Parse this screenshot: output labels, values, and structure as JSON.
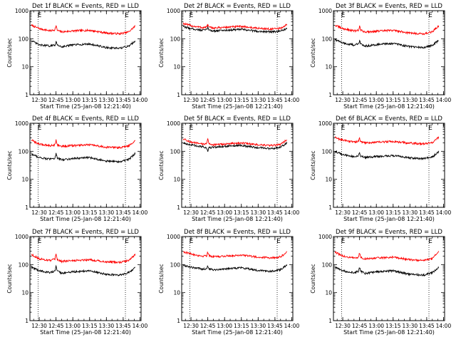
{
  "chart_data": [
    {
      "type": "line",
      "title": "Det 1f BLACK = Events, RED = LLD",
      "xlabel": "Start Time (25-Jan-08 12:21:40)",
      "ylabel": "Counts/sec",
      "y_scale": "log",
      "ylim": [
        1,
        1000
      ],
      "x_ticks": [
        "12:30",
        "12:45",
        "13:00",
        "13:15",
        "13:30",
        "13:45",
        "14:00"
      ],
      "y_ticks": [
        "1",
        "10",
        "100",
        "1000"
      ],
      "markers": [
        "E",
        "E"
      ],
      "series": [
        {
          "name": "Events",
          "color": "#000000",
          "x": [
            "12:23",
            "12:30",
            "12:40",
            "12:44",
            "12:45",
            "12:46",
            "12:50",
            "13:00",
            "13:15",
            "13:30",
            "13:42",
            "13:50",
            "13:56"
          ],
          "y": [
            85,
            60,
            55,
            60,
            80,
            60,
            52,
            60,
            65,
            48,
            45,
            55,
            85
          ]
        },
        {
          "name": "LLD",
          "color": "#ff0000",
          "x": [
            "12:23",
            "12:30",
            "12:40",
            "12:44",
            "12:45",
            "12:46",
            "12:50",
            "13:00",
            "13:15",
            "13:30",
            "13:42",
            "13:50",
            "13:56"
          ],
          "y": [
            300,
            230,
            190,
            210,
            300,
            200,
            175,
            190,
            200,
            160,
            150,
            175,
            290
          ]
        }
      ]
    },
    {
      "type": "line",
      "title": "Det 2f BLACK = Events, RED = LLD",
      "xlabel": "Start Time (25-Jan-08 12:21:40)",
      "ylabel": "Counts/sec",
      "y_scale": "log",
      "ylim": [
        1,
        1000
      ],
      "x_ticks": [
        "12:30",
        "12:45",
        "13:00",
        "13:15",
        "13:30",
        "13:45",
        "14:00"
      ],
      "y_ticks": [
        "1",
        "10",
        "100",
        "1000"
      ],
      "markers": [
        "E",
        "E"
      ],
      "series": [
        {
          "name": "Events",
          "color": "#000000",
          "x": [
            "12:23",
            "12:30",
            "12:40",
            "12:44",
            "12:45",
            "12:46",
            "12:50",
            "13:00",
            "13:15",
            "13:30",
            "13:42",
            "13:50",
            "13:56"
          ],
          "y": [
            270,
            230,
            200,
            210,
            260,
            205,
            190,
            200,
            215,
            185,
            175,
            185,
            230
          ]
        },
        {
          "name": "LLD",
          "color": "#ff0000",
          "x": [
            "12:23",
            "12:30",
            "12:40",
            "12:44",
            "12:45",
            "12:46",
            "12:50",
            "13:00",
            "13:15",
            "13:30",
            "13:42",
            "13:50",
            "13:56"
          ],
          "y": [
            350,
            290,
            250,
            260,
            330,
            255,
            240,
            255,
            275,
            235,
            220,
            235,
            320
          ]
        }
      ]
    },
    {
      "type": "line",
      "title": "Det 3f BLACK = Events, RED = LLD",
      "xlabel": "Start Time (25-Jan-08 12:21:40)",
      "ylabel": "Counts/sec",
      "y_scale": "log",
      "ylim": [
        1,
        1000
      ],
      "x_ticks": [
        "12:30",
        "12:45",
        "13:00",
        "13:15",
        "13:30",
        "13:45",
        "14:00"
      ],
      "y_ticks": [
        "1",
        "10",
        "100",
        "1000"
      ],
      "markers": [
        "E",
        "E"
      ],
      "series": [
        {
          "name": "Events",
          "color": "#000000",
          "x": [
            "12:23",
            "12:30",
            "12:40",
            "12:44",
            "12:45",
            "12:46",
            "12:50",
            "13:00",
            "13:15",
            "13:30",
            "13:42",
            "13:50",
            "13:56"
          ],
          "y": [
            95,
            70,
            60,
            65,
            85,
            65,
            55,
            62,
            68,
            52,
            48,
            58,
            90
          ]
        },
        {
          "name": "LLD",
          "color": "#ff0000",
          "x": [
            "12:23",
            "12:30",
            "12:40",
            "12:44",
            "12:45",
            "12:46",
            "12:50",
            "13:00",
            "13:15",
            "13:30",
            "13:42",
            "13:50",
            "13:56"
          ],
          "y": [
            300,
            230,
            190,
            200,
            290,
            200,
            175,
            185,
            200,
            160,
            150,
            175,
            300
          ]
        }
      ]
    },
    {
      "type": "line",
      "title": "Det 4f BLACK = Events, RED = LLD",
      "xlabel": "Start Time (25-Jan-08 12:21:40)",
      "ylabel": "Counts/sec",
      "y_scale": "log",
      "ylim": [
        1,
        1000
      ],
      "x_ticks": [
        "12:30",
        "12:45",
        "13:00",
        "13:15",
        "13:30",
        "13:45",
        "14:00"
      ],
      "y_ticks": [
        "1",
        "10",
        "100",
        "1000"
      ],
      "markers": [
        "E",
        "E"
      ],
      "series": [
        {
          "name": "Events",
          "color": "#000000",
          "x": [
            "12:23",
            "12:30",
            "12:40",
            "12:44",
            "12:45",
            "12:46",
            "12:50",
            "13:00",
            "13:15",
            "13:30",
            "13:42",
            "13:50",
            "13:56"
          ],
          "y": [
            80,
            60,
            52,
            58,
            85,
            58,
            50,
            55,
            60,
            45,
            42,
            52,
            85
          ]
        },
        {
          "name": "LLD",
          "color": "#ff0000",
          "x": [
            "12:23",
            "12:30",
            "12:40",
            "12:44",
            "12:45",
            "12:46",
            "12:50",
            "13:00",
            "13:15",
            "13:30",
            "13:42",
            "13:50",
            "13:56"
          ],
          "y": [
            250,
            180,
            160,
            170,
            260,
            170,
            150,
            160,
            170,
            140,
            135,
            155,
            250
          ]
        }
      ]
    },
    {
      "type": "line",
      "title": "Det 5f BLACK = Events, RED = LLD",
      "xlabel": "Start Time (25-Jan-08 12:21:40)",
      "ylabel": "Counts/sec",
      "y_scale": "log",
      "ylim": [
        1,
        1000
      ],
      "x_ticks": [
        "12:30",
        "12:45",
        "13:00",
        "13:15",
        "13:30",
        "13:45",
        "14:00"
      ],
      "y_ticks": [
        "1",
        "10",
        "100",
        "1000"
      ],
      "markers": [
        "E",
        "E"
      ],
      "series": [
        {
          "name": "Events",
          "color": "#000000",
          "x": [
            "12:23",
            "12:30",
            "12:40",
            "12:44",
            "12:45",
            "12:46",
            "12:50",
            "13:00",
            "13:15",
            "13:30",
            "13:42",
            "13:50",
            "13:56"
          ],
          "y": [
            200,
            170,
            145,
            130,
            90,
            135,
            140,
            150,
            160,
            135,
            125,
            140,
            200
          ]
        },
        {
          "name": "LLD",
          "color": "#ff0000",
          "x": [
            "12:23",
            "12:30",
            "12:40",
            "12:44",
            "12:45",
            "12:46",
            "12:50",
            "13:00",
            "13:15",
            "13:30",
            "13:42",
            "13:50",
            "13:56"
          ],
          "y": [
            280,
            210,
            180,
            190,
            270,
            190,
            170,
            180,
            200,
            170,
            160,
            175,
            270
          ]
        }
      ]
    },
    {
      "type": "line",
      "title": "Det 6f BLACK = Events, RED = LLD",
      "xlabel": "Start Time (25-Jan-08 12:21:40)",
      "ylabel": "Counts/sec",
      "y_scale": "log",
      "ylim": [
        1,
        1000
      ],
      "x_ticks": [
        "12:30",
        "12:45",
        "13:00",
        "13:15",
        "13:30",
        "13:45",
        "14:00"
      ],
      "y_ticks": [
        "1",
        "10",
        "100",
        "1000"
      ],
      "markers": [
        "E",
        "E"
      ],
      "series": [
        {
          "name": "Events",
          "color": "#000000",
          "x": [
            "12:23",
            "12:30",
            "12:40",
            "12:44",
            "12:45",
            "12:46",
            "12:50",
            "13:00",
            "13:15",
            "13:30",
            "13:42",
            "13:50",
            "13:56"
          ],
          "y": [
            100,
            75,
            65,
            68,
            85,
            66,
            60,
            65,
            70,
            58,
            55,
            62,
            100
          ]
        },
        {
          "name": "LLD",
          "color": "#ff0000",
          "x": [
            "12:23",
            "12:30",
            "12:40",
            "12:44",
            "12:45",
            "12:46",
            "12:50",
            "13:00",
            "13:15",
            "13:30",
            "13:42",
            "13:50",
            "13:56"
          ],
          "y": [
            310,
            250,
            215,
            225,
            290,
            220,
            200,
            210,
            225,
            195,
            185,
            205,
            320
          ]
        }
      ]
    },
    {
      "type": "line",
      "title": "Det 7f BLACK = Events, RED = LLD",
      "xlabel": "Start Time (25-Jan-08 12:21:40)",
      "ylabel": "Counts/sec",
      "y_scale": "log",
      "ylim": [
        1,
        1000
      ],
      "x_ticks": [
        "12:30",
        "12:45",
        "13:00",
        "13:15",
        "13:30",
        "13:45",
        "14:00"
      ],
      "y_ticks": [
        "1",
        "10",
        "100",
        "1000"
      ],
      "markers": [
        "E",
        "E"
      ],
      "series": [
        {
          "name": "Events",
          "color": "#000000",
          "x": [
            "12:23",
            "12:30",
            "12:40",
            "12:44",
            "12:45",
            "12:46",
            "12:50",
            "13:00",
            "13:15",
            "13:30",
            "13:42",
            "13:50",
            "13:56"
          ],
          "y": [
            80,
            60,
            52,
            58,
            85,
            58,
            50,
            55,
            60,
            45,
            42,
            52,
            80
          ]
        },
        {
          "name": "LLD",
          "color": "#ff0000",
          "x": [
            "12:23",
            "12:30",
            "12:40",
            "12:44",
            "12:45",
            "12:46",
            "12:50",
            "13:00",
            "13:15",
            "13:30",
            "13:42",
            "13:50",
            "13:56"
          ],
          "y": [
            230,
            160,
            140,
            155,
            230,
            150,
            130,
            140,
            150,
            125,
            120,
            140,
            230
          ]
        }
      ]
    },
    {
      "type": "line",
      "title": "Det 8f BLACK = Events, RED = LLD",
      "xlabel": "Start Time (25-Jan-08 12:21:40)",
      "ylabel": "Counts/sec",
      "y_scale": "log",
      "ylim": [
        1,
        1000
      ],
      "x_ticks": [
        "12:30",
        "12:45",
        "13:00",
        "13:15",
        "13:30",
        "13:45",
        "14:00"
      ],
      "y_ticks": [
        "1",
        "10",
        "100",
        "1000"
      ],
      "markers": [
        "E",
        "E"
      ],
      "series": [
        {
          "name": "Events",
          "color": "#000000",
          "x": [
            "12:23",
            "12:30",
            "12:40",
            "12:44",
            "12:45",
            "12:46",
            "12:50",
            "13:00",
            "13:15",
            "13:30",
            "13:42",
            "13:50",
            "13:56"
          ],
          "y": [
            95,
            80,
            70,
            72,
            90,
            72,
            65,
            70,
            78,
            62,
            58,
            66,
            100
          ]
        },
        {
          "name": "LLD",
          "color": "#ff0000",
          "x": [
            "12:23",
            "12:30",
            "12:40",
            "12:44",
            "12:45",
            "12:46",
            "12:50",
            "13:00",
            "13:15",
            "13:30",
            "13:42",
            "13:50",
            "13:56"
          ],
          "y": [
            290,
            240,
            200,
            210,
            290,
            210,
            190,
            200,
            220,
            185,
            175,
            190,
            280
          ]
        }
      ]
    },
    {
      "type": "line",
      "title": "Det 9f BLACK = Events, RED = LLD",
      "xlabel": "Start Time (25-Jan-08 12:21:40)",
      "ylabel": "Counts/sec",
      "y_scale": "log",
      "ylim": [
        1,
        1000
      ],
      "x_ticks": [
        "12:30",
        "12:45",
        "13:00",
        "13:15",
        "13:30",
        "13:45",
        "14:00"
      ],
      "y_ticks": [
        "1",
        "10",
        "100",
        "1000"
      ],
      "markers": [
        "E",
        "E"
      ],
      "series": [
        {
          "name": "Events",
          "color": "#000000",
          "x": [
            "12:23",
            "12:30",
            "12:40",
            "12:44",
            "12:45",
            "12:46",
            "12:50",
            "13:00",
            "13:15",
            "13:30",
            "13:42",
            "13:50",
            "13:56"
          ],
          "y": [
            80,
            60,
            52,
            58,
            80,
            58,
            48,
            55,
            60,
            45,
            42,
            52,
            80
          ]
        },
        {
          "name": "LLD",
          "color": "#ff0000",
          "x": [
            "12:23",
            "12:30",
            "12:40",
            "12:44",
            "12:45",
            "12:46",
            "12:50",
            "13:00",
            "13:15",
            "13:30",
            "13:42",
            "13:50",
            "13:56"
          ],
          "y": [
            280,
            200,
            170,
            180,
            270,
            180,
            160,
            170,
            185,
            150,
            140,
            160,
            300
          ]
        }
      ]
    }
  ]
}
